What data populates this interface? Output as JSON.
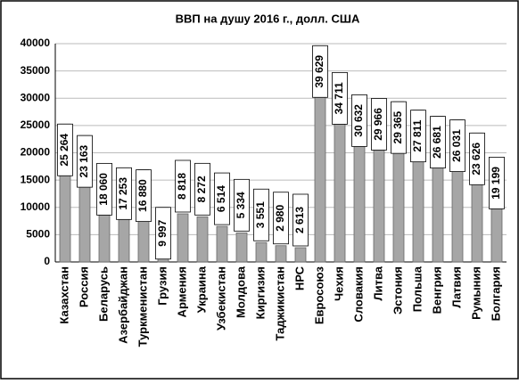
{
  "chart_data": {
    "type": "bar",
    "title": "ВВП на душу 2016 г., долл. США",
    "categories": [
      "Казахстан",
      "Россия",
      "Беларусь",
      "Азербайджан",
      "Туркменистан",
      "Грузия",
      "Армения",
      "Украина",
      "Узбекистан",
      "Молдова",
      "Киргизия",
      "Таджикистан",
      "НРС",
      "Евросоюз",
      "Чехия",
      "Словакия",
      "Литва",
      "Эстония",
      "Польша",
      "Венгрия",
      "Латвия",
      "Румыния",
      "Болгария"
    ],
    "values": [
      25264,
      23163,
      18060,
      17253,
      16880,
      9997,
      8818,
      8272,
      6514,
      5334,
      3551,
      2980,
      2613,
      39629,
      34711,
      30632,
      29966,
      29365,
      27811,
      26681,
      26031,
      23626,
      19199
    ],
    "value_labels": [
      "25 264",
      "23 163",
      "18 060",
      "17 253",
      "16 880",
      "9 997",
      "8 818",
      "8 272",
      "6 514",
      "5 334",
      "3 551",
      "2 980",
      "2 613",
      "39 629",
      "34 711",
      "30 632",
      "29 966",
      "29 365",
      "27 811",
      "26 681",
      "26 031",
      "23 626",
      "19 199"
    ],
    "color": "#a6a6a6",
    "ylim": [
      0,
      40000
    ],
    "yticks": [
      0,
      5000,
      10000,
      15000,
      20000,
      25000,
      30000,
      35000,
      40000
    ],
    "grid": true
  }
}
